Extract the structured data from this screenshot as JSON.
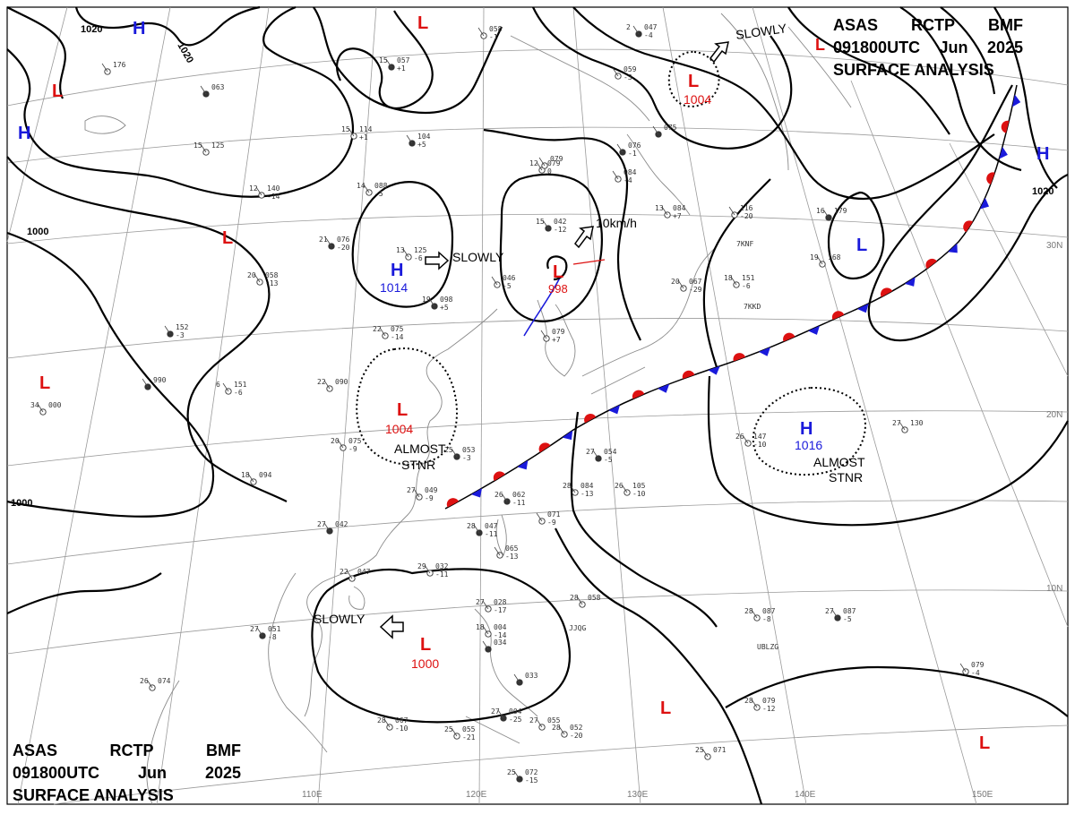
{
  "header": {
    "line1": [
      "ASAS",
      "RCTP",
      "BMF"
    ],
    "line2": [
      "091800UTC",
      "Jun",
      "2025"
    ],
    "line3": "SURFACE ANALYSIS"
  },
  "colors": {
    "high": "#1a1adb",
    "low": "#dd1111",
    "isobar": "#000000",
    "grid": "#9a9a9a",
    "coast": "#8a8a8a"
  },
  "lat_labels": [
    "30N",
    "20N",
    "10N"
  ],
  "lon_labels": [
    "110E",
    "120E",
    "130E",
    "140E",
    "150E"
  ],
  "isobar_values": [
    "1020",
    "1020",
    "1000",
    "1000",
    "1020"
  ],
  "pressure_centers": [
    {
      "type": "H",
      "value": ""
    },
    {
      "type": "H",
      "value": ""
    },
    {
      "type": "L",
      "value": ""
    },
    {
      "type": "L",
      "value": ""
    },
    {
      "type": "L",
      "value": ""
    },
    {
      "type": "H",
      "value": "1014"
    },
    {
      "type": "L",
      "value": "998"
    },
    {
      "type": "L",
      "value": "1004"
    },
    {
      "type": "L",
      "value": "1004"
    },
    {
      "type": "H",
      "value": "1016"
    },
    {
      "type": "L",
      "value": ""
    },
    {
      "type": "L",
      "value": "1000"
    },
    {
      "type": "L",
      "value": ""
    },
    {
      "type": "L",
      "value": ""
    },
    {
      "type": "L",
      "value": ""
    },
    {
      "type": "H",
      "value": ""
    },
    {
      "type": "L",
      "value": ""
    }
  ],
  "movement_labels": [
    "SLOWLY",
    "SLOWLY",
    "10km/h",
    "SLOWLY"
  ],
  "stnr_labels": [
    [
      "ALMOST",
      "STNR"
    ],
    [
      "ALMOST",
      "STNR"
    ]
  ],
  "station_plots": [
    {
      "t": "15",
      "p": "057",
      "d": "+1"
    },
    {
      "t": "",
      "p": "058",
      "d": "-1"
    },
    {
      "t": "15",
      "p": "114",
      "d": "+1"
    },
    {
      "t": "",
      "p": "104",
      "d": "+5"
    },
    {
      "t": "14",
      "p": "088",
      "d": "-5"
    },
    {
      "t": "12",
      "p": "140",
      "d": "-14"
    },
    {
      "t": "21",
      "p": "076",
      "d": "-20"
    },
    {
      "t": "13",
      "p": "125",
      "d": "-6"
    },
    {
      "t": "20",
      "p": "058",
      "d": "-13"
    },
    {
      "t": "19",
      "p": "098",
      "d": "+5"
    },
    {
      "t": "22",
      "p": "075",
      "d": "-14"
    },
    {
      "t": "12",
      "p": "079",
      "d": "0"
    },
    {
      "t": "15",
      "p": "042",
      "d": "-12"
    },
    {
      "t": "",
      "p": "046",
      "d": "-5"
    },
    {
      "t": "",
      "p": "079",
      "d": "+7"
    },
    {
      "t": "",
      "p": "076",
      "d": "-1"
    },
    {
      "t": "",
      "p": "084",
      "d": "-4"
    },
    {
      "t": "13",
      "p": "084",
      "d": "+7"
    },
    {
      "t": "",
      "p": "075",
      "d": ""
    },
    {
      "t": "",
      "p": "116",
      "d": "-20"
    },
    {
      "t": "18",
      "p": "151",
      "d": "-6"
    },
    {
      "t": "16",
      "p": "179",
      "d": ""
    },
    {
      "t": "19",
      "p": "168",
      "d": ""
    },
    {
      "t": "20",
      "p": "067",
      "d": "-29"
    },
    {
      "t": "",
      "p": "152",
      "d": "-3"
    },
    {
      "t": "6",
      "p": "151",
      "d": "-6"
    },
    {
      "t": "22",
      "p": "090",
      "d": ""
    },
    {
      "t": "",
      "p": "990",
      "d": ""
    },
    {
      "t": "34",
      "p": "000",
      "d": ""
    },
    {
      "t": "20",
      "p": "075",
      "d": "-9"
    },
    {
      "t": "25",
      "p": "053",
      "d": "-3"
    },
    {
      "t": "27",
      "p": "049",
      "d": "-9"
    },
    {
      "t": "18",
      "p": "094",
      "d": ""
    },
    {
      "t": "26",
      "p": "062",
      "d": "-11"
    },
    {
      "t": "28",
      "p": "084",
      "d": "-13"
    },
    {
      "t": "26",
      "p": "105",
      "d": "-10"
    },
    {
      "t": "27",
      "p": "054",
      "d": "-5"
    },
    {
      "t": "26",
      "p": "147",
      "d": "-10"
    },
    {
      "t": "27",
      "p": "130",
      "d": ""
    },
    {
      "t": "28",
      "p": "047",
      "d": "-11"
    },
    {
      "t": "",
      "p": "071",
      "d": "-9"
    },
    {
      "t": "",
      "p": "065",
      "d": "-13"
    },
    {
      "t": "27",
      "p": "042",
      "d": ""
    },
    {
      "t": "22",
      "p": "047",
      "d": ""
    },
    {
      "t": "29",
      "p": "032",
      "d": "-11"
    },
    {
      "t": "27",
      "p": "051",
      "d": "-8"
    },
    {
      "t": "27",
      "p": "028",
      "d": "-17"
    },
    {
      "t": "18",
      "p": "004",
      "d": "-14"
    },
    {
      "t": "",
      "p": "034",
      "d": ""
    },
    {
      "t": "28",
      "p": "058",
      "d": ""
    },
    {
      "t": "28",
      "p": "087",
      "d": "-8"
    },
    {
      "t": "27",
      "p": "087",
      "d": "-5"
    },
    {
      "t": "",
      "p": "079",
      "d": "-4"
    },
    {
      "t": "26",
      "p": "074",
      "d": ""
    },
    {
      "t": "",
      "p": "033",
      "d": ""
    },
    {
      "t": "28",
      "p": "067",
      "d": "-10"
    },
    {
      "t": "25",
      "p": "055",
      "d": "-21"
    },
    {
      "t": "27",
      "p": "004",
      "d": "-25"
    },
    {
      "t": "27",
      "p": "055",
      "d": ""
    },
    {
      "t": "28",
      "p": "052",
      "d": "-20"
    },
    {
      "t": "25",
      "p": "072",
      "d": "-15"
    },
    {
      "t": "25",
      "p": "071",
      "d": ""
    },
    {
      "t": "28",
      "p": "079",
      "d": "-12"
    },
    {
      "t": "",
      "p": "063",
      "d": ""
    },
    {
      "t": "",
      "p": "176",
      "d": ""
    },
    {
      "t": "15",
      "p": "125",
      "d": ""
    },
    {
      "t": "2",
      "p": "047",
      "d": "-4"
    },
    {
      "t": "",
      "p": "059",
      "d": "-3"
    },
    {
      "t": "",
      "p": "079",
      "d": ""
    }
  ],
  "station_ids": [
    "7KNF",
    "7KKD",
    "UBLZG",
    "JJQG"
  ]
}
